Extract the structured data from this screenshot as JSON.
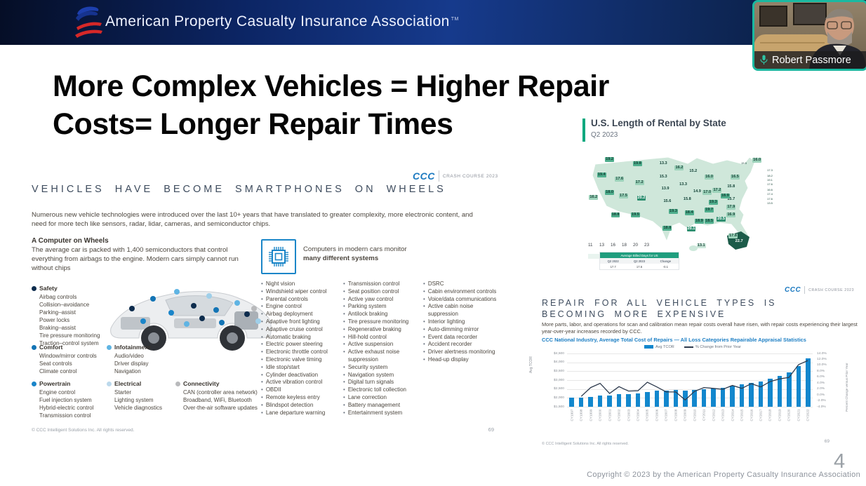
{
  "header": {
    "title": "American Property Casualty Insurance Association",
    "trademark": "TM"
  },
  "webcam": {
    "name": "Robert Passmore"
  },
  "slide": {
    "title_line1": "More Complex Vehicles = Higher Repair",
    "title_line2": "Costs= Longer Repair Times",
    "page_number": "4",
    "copyright": "Copyright © 2023 by the American Property Casualty Insurance Association"
  },
  "ccc_brand": {
    "logo": "CCC",
    "label": "CRASH COURSE 2023"
  },
  "ccc_slide": {
    "heading": "VEHICLES HAVE BECOME SMARTPHONES ON WHEELS",
    "intro": "Numerous new vehicle technologies were introduced over the last 10+ years that have translated to greater complexity, more electronic content, and need for more tech like sensors, radar, lidar, cameras, and semiconductor chips.",
    "computer": {
      "title": "A Computer on Wheels",
      "body": "The average car is packed with 1,400 semiconductors that control everything from airbags to the engine. Modern cars simply cannot run without chips"
    },
    "chip_caption": {
      "plain": "Computers in modern cars monitor ",
      "bold": "many different systems"
    },
    "categories": [
      {
        "id": "safety",
        "name": "Safety",
        "color": "#0d2c4d",
        "items": [
          "Airbag controls",
          "Collision–avoidance",
          "Parking–assist",
          "Power locks",
          "Braking–assist",
          "Tire pressure monitoring",
          "Traction–control system"
        ]
      },
      {
        "id": "comfort",
        "name": "Comfort",
        "color": "#1374b5",
        "items": [
          "Window/mirror controls",
          "Seat controls",
          "Climate control"
        ]
      },
      {
        "id": "powertrain",
        "name": "Powertrain",
        "color": "#1a85c9",
        "items": [
          "Engine control",
          "Fuel injection system",
          "Hybrid-electric control",
          "Transmission control"
        ]
      },
      {
        "id": "infotainment",
        "name": "Infotainment",
        "color": "#5fb4e3",
        "items": [
          "Audio/video",
          "Driver display",
          "Navigation"
        ]
      },
      {
        "id": "electrical",
        "name": "Electrical",
        "color": "#bcd9ec",
        "items": [
          "Starter",
          "Lighting system",
          "Vehicle diagnostics"
        ]
      },
      {
        "id": "connectivity",
        "name": "Connectivity",
        "color": "#b9babc",
        "items": [
          "CAN (controller area network)",
          "Broadband, WiFi, Bluetooth",
          "Over-the-air software updates"
        ]
      }
    ],
    "systems": {
      "col1": [
        "Night vision",
        "Windshield wiper control",
        "Parental controls",
        "Engine control",
        "Airbag deployment",
        "Adaptive front lighting",
        "Adaptive cruise control",
        "Automatic braking",
        "Electric power steering",
        "Electronic throttle control",
        "Electronic valve timing",
        "Idle stop/start",
        "Cylinder deactivation",
        "Active vibration control",
        "OBDII",
        "Remote keyless entry",
        "Blindspot detection",
        "Lane departure warning"
      ],
      "col2": [
        "Transmission control",
        "Seat position control",
        "Active yaw control",
        "Parking system",
        "Antilock braking",
        "Tire pressure monitoring",
        "Regenerative braking",
        "Hill-hold control",
        "Active suspension",
        "Active exhaust noise suppression",
        "Security system",
        "Navigation system",
        "Digital turn signals",
        "Electronic toll collection",
        "Lane correction",
        "Battery management",
        "Entertainment system"
      ],
      "col3": [
        "DSRC",
        "Cabin environment controls",
        "Voice/data communications",
        "Active cabin noise suppression",
        "Interior lighting",
        "Auto-dimming mirror",
        "Event data recorder",
        "Accident recorder",
        "Driver alertness monitoring",
        "Head-up display"
      ]
    },
    "footer": "© CCC Intelligent Solutions Inc. All rights reserved.",
    "page_number": "69"
  },
  "repair_card": {
    "heading": "REPAIR FOR ALL VEHICLE TYPES IS BECOMING MORE EXPENSIVE",
    "intro": "More parts, labor, and operations for scan and calibration mean repair costs overall have risen, with repair costs experiencing their largest year-over-year increases recorded by CCC.",
    "footer": "© CCC Intelligent Solutions Inc. All rights reserved.",
    "page_number": "69"
  },
  "chart_data": [
    {
      "type": "choropleth",
      "title": "U.S. Length of Rental by State",
      "subtitle": "Q2 2023",
      "legend_scale": [
        11,
        13,
        16,
        18,
        20,
        23
      ],
      "palette": [
        "#e9f4ef",
        "#cde8db",
        "#9cd2ba",
        "#4fae8d",
        "#2e8f70",
        "#1c5b49"
      ],
      "summary_table": {
        "header": "Average Billed Days for US",
        "columns": [
          "Q2 2022",
          "Q2 2023",
          "Change"
        ],
        "values": [
          "17.7",
          "17.6",
          "-0.1"
        ]
      },
      "states": [
        {
          "abbr": "WA",
          "value": 19.2,
          "x": 12,
          "y": 10
        },
        {
          "abbr": "OR",
          "value": 19.4,
          "x": 8,
          "y": 24
        },
        {
          "abbr": "ID",
          "value": 17.6,
          "x": 17,
          "y": 28
        },
        {
          "abbr": "MT",
          "value": 19.8,
          "x": 26,
          "y": 14
        },
        {
          "abbr": "WY",
          "value": 17.2,
          "x": 27,
          "y": 31
        },
        {
          "abbr": "CA",
          "value": 16.2,
          "x": 4,
          "y": 44
        },
        {
          "abbr": "NV",
          "value": 18.0,
          "x": 12,
          "y": 40
        },
        {
          "abbr": "UT",
          "value": 17.5,
          "x": 19,
          "y": 43
        },
        {
          "abbr": "CO",
          "value": 20.2,
          "x": 28,
          "y": 45
        },
        {
          "abbr": "AZ",
          "value": 18.8,
          "x": 15,
          "y": 60
        },
        {
          "abbr": "NM",
          "value": 19.5,
          "x": 25,
          "y": 60
        },
        {
          "abbr": "ND",
          "value": 13.3,
          "x": 39,
          "y": 14
        },
        {
          "abbr": "SD",
          "value": 15.3,
          "x": 39,
          "y": 26
        },
        {
          "abbr": "NE",
          "value": 13.9,
          "x": 40,
          "y": 37
        },
        {
          "abbr": "KS",
          "value": 15.6,
          "x": 41,
          "y": 48
        },
        {
          "abbr": "OK",
          "value": 19.3,
          "x": 44,
          "y": 57
        },
        {
          "abbr": "TX",
          "value": 18.8,
          "x": 41,
          "y": 72
        },
        {
          "abbr": "MN",
          "value": 16.2,
          "x": 47,
          "y": 18
        },
        {
          "abbr": "IA",
          "value": 13.3,
          "x": 49,
          "y": 33
        },
        {
          "abbr": "MO",
          "value": 15.8,
          "x": 51,
          "y": 46
        },
        {
          "abbr": "AR",
          "value": 18.4,
          "x": 52,
          "y": 58
        },
        {
          "abbr": "LA",
          "value": 20.1,
          "x": 53,
          "y": 73
        },
        {
          "abbr": "WI",
          "value": 15.2,
          "x": 54,
          "y": 21
        },
        {
          "abbr": "IL",
          "value": 14.9,
          "x": 56,
          "y": 39
        },
        {
          "abbr": "MS",
          "value": 18.9,
          "x": 57,
          "y": 66
        },
        {
          "abbr": "MI",
          "value": 16.0,
          "x": 62,
          "y": 26
        },
        {
          "abbr": "IN",
          "value": 17.0,
          "x": 61,
          "y": 40
        },
        {
          "abbr": "KY",
          "value": 19.3,
          "x": 64,
          "y": 49
        },
        {
          "abbr": "TN",
          "value": 19.7,
          "x": 62,
          "y": 56
        },
        {
          "abbr": "AL",
          "value": 18.5,
          "x": 62,
          "y": 66
        },
        {
          "abbr": "OH",
          "value": 17.2,
          "x": 66,
          "y": 38
        },
        {
          "abbr": "GA",
          "value": 20.5,
          "x": 68,
          "y": 64
        },
        {
          "abbr": "FL",
          "value": 17.8,
          "x": 74,
          "y": 79
        },
        {
          "abbr": "SC",
          "value": 16.9,
          "x": 73,
          "y": 60
        },
        {
          "abbr": "NC",
          "value": 17.9,
          "x": 73,
          "y": 53
        },
        {
          "abbr": "VA",
          "value": 15.7,
          "x": 73,
          "y": 46
        },
        {
          "abbr": "WV",
          "value": 18.9,
          "x": 70,
          "y": 43
        },
        {
          "abbr": "PA",
          "value": 15.8,
          "x": 73,
          "y": 35
        },
        {
          "abbr": "NY",
          "value": 16.5,
          "x": 75,
          "y": 26
        },
        {
          "abbr": "VT",
          "value": 15.5,
          "x": 80,
          "y": 14,
          "small": true
        },
        {
          "abbr": "ME",
          "value": 16.0,
          "x": 86,
          "y": 11
        },
        {
          "abbr": "NH",
          "value": 17.3,
          "x": 93,
          "y": 20,
          "small": true
        },
        {
          "abbr": "MA",
          "value": 18.2,
          "x": 93,
          "y": 25,
          "small": true
        },
        {
          "abbr": "RI",
          "value": 19.1,
          "x": 93,
          "y": 29,
          "small": true
        },
        {
          "abbr": "CT",
          "value": 17.6,
          "x": 93,
          "y": 33,
          "small": true
        },
        {
          "abbr": "NJ",
          "value": 16.6,
          "x": 93,
          "y": 38,
          "small": true
        },
        {
          "abbr": "DE",
          "value": 17.4,
          "x": 93,
          "y": 42,
          "small": true
        },
        {
          "abbr": "MD",
          "value": 17.6,
          "x": 93,
          "y": 46,
          "small": true
        },
        {
          "abbr": "DC",
          "value": 13.5,
          "x": 93,
          "y": 50,
          "small": true
        },
        {
          "abbr": "AK",
          "value": 22.7,
          "x": 77,
          "y": 84
        },
        {
          "abbr": "HI",
          "value": 13.1,
          "x": 58,
          "y": 88
        }
      ]
    },
    {
      "type": "bar+line",
      "title": "CCC National Industry, Average Total Cost of Repairs — All Loss Categories Repairable Appraisal Statistics",
      "categories": [
        "CY1997",
        "CY1998",
        "CY1999",
        "CY2000",
        "CY2001",
        "CY2002",
        "CY2003",
        "CY2004",
        "CY2005",
        "CY2006",
        "CY2007",
        "CY2008",
        "CY2009",
        "CY2010",
        "CY2011",
        "CY2012",
        "CY2013",
        "CY2014",
        "CY2015",
        "CY2016",
        "CY2017",
        "CY2018",
        "CY2019",
        "CY2020",
        "CY2021",
        "CY2022"
      ],
      "series": [
        {
          "name": "Avg TCOR",
          "type": "bar",
          "color": "#1287cd",
          "values": [
            2020,
            2010,
            2060,
            2130,
            2140,
            2200,
            2210,
            2250,
            2330,
            2390,
            2410,
            2440,
            2400,
            2430,
            2500,
            2520,
            2580,
            2700,
            2760,
            2860,
            2940,
            3080,
            3250,
            3430,
            3790,
            4220
          ]
        },
        {
          "name": "% Change from Prior Year",
          "type": "line",
          "color": "#2e3b4e",
          "values": [
            null,
            -0.5,
            2.5,
            3.9,
            0.5,
            2.8,
            1.3,
            1.4,
            4.3,
            2.7,
            1.0,
            1.0,
            -1.7,
            1.2,
            2.5,
            2.2,
            1.9,
            3.2,
            2.2,
            3.8,
            2.7,
            4.5,
            5.4,
            5.9,
            10.2,
            11.6
          ]
        }
      ],
      "ylabel_left": "Avg TCOR",
      "ylabel_right": "Percent Change versus Prior Year",
      "ylim_left": [
        1500,
        4500
      ],
      "ylim_right": [
        -4,
        14
      ],
      "yticks_left": [
        "$4,500",
        "$4,000",
        "$3,500",
        "$3,000",
        "$2,500",
        "$2,000",
        "$1,500"
      ],
      "yticks_right": [
        "14.0%",
        "12.0%",
        "10.0%",
        "8.0%",
        "6.0%",
        "4.0%",
        "2.0%",
        "0.0%",
        "-2.0%",
        "-4.0%"
      ]
    }
  ]
}
